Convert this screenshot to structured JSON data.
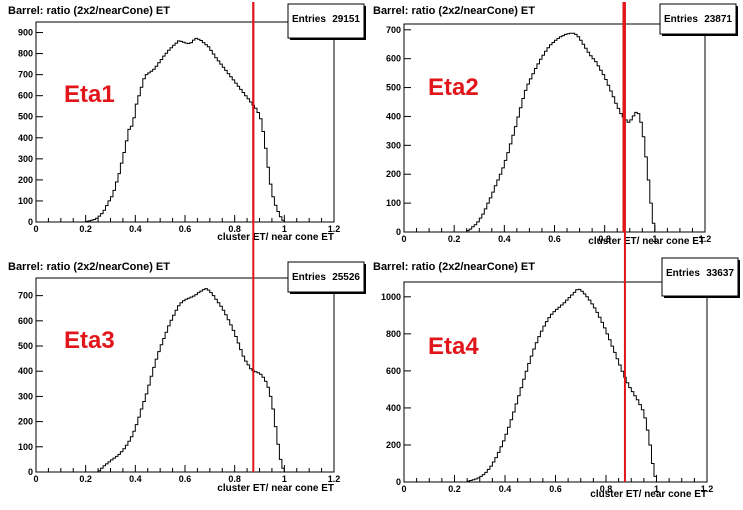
{
  "chart_data": [
    {
      "type": "bar",
      "title": "Barrel: ratio (2x2/nearCone) ET",
      "annotation": "Eta1",
      "xlabel": "cluster ET/ near cone ET",
      "ylabel": "",
      "stats": {
        "label": "Entries",
        "value": "29151"
      },
      "xlim": [
        0,
        1.2
      ],
      "ylim": [
        0,
        950
      ],
      "xticks": [
        "0",
        "0.2",
        "0.4",
        "0.6",
        "0.8",
        "1",
        "1.2"
      ],
      "yticks": [
        "0",
        "100",
        "200",
        "300",
        "400",
        "500",
        "600",
        "700",
        "800",
        "900"
      ],
      "cut_line": 0.875,
      "bin_width": 0.01,
      "x": [
        0.2,
        0.21,
        0.22,
        0.23,
        0.24,
        0.25,
        0.26,
        0.27,
        0.28,
        0.29,
        0.3,
        0.31,
        0.32,
        0.33,
        0.34,
        0.35,
        0.36,
        0.37,
        0.38,
        0.39,
        0.4,
        0.41,
        0.42,
        0.43,
        0.44,
        0.45,
        0.46,
        0.47,
        0.48,
        0.49,
        0.5,
        0.51,
        0.52,
        0.53,
        0.54,
        0.55,
        0.56,
        0.57,
        0.58,
        0.59,
        0.6,
        0.61,
        0.62,
        0.63,
        0.64,
        0.65,
        0.66,
        0.67,
        0.68,
        0.69,
        0.7,
        0.71,
        0.72,
        0.73,
        0.74,
        0.75,
        0.76,
        0.77,
        0.78,
        0.79,
        0.8,
        0.81,
        0.82,
        0.83,
        0.84,
        0.85,
        0.86,
        0.87,
        0.88,
        0.89,
        0.9,
        0.91,
        0.92,
        0.93,
        0.94,
        0.95,
        0.96,
        0.97,
        0.98,
        0.99
      ],
      "values": [
        3,
        5,
        8,
        12,
        18,
        28,
        40,
        56,
        78,
        100,
        120,
        150,
        190,
        230,
        280,
        330,
        385,
        440,
        455,
        495,
        560,
        600,
        640,
        680,
        700,
        708,
        716,
        726,
        740,
        756,
        772,
        788,
        802,
        816,
        828,
        840,
        850,
        860,
        858,
        854,
        850,
        848,
        852,
        864,
        872,
        868,
        862,
        852,
        842,
        832,
        815,
        798,
        780,
        765,
        750,
        735,
        720,
        705,
        690,
        675,
        660,
        645,
        630,
        615,
        600,
        585,
        570,
        555,
        540,
        520,
        490,
        430,
        350,
        260,
        180,
        120,
        80,
        50,
        25,
        8
      ]
    },
    {
      "type": "bar",
      "title": "Barrel: ratio (2x2/nearCone) ET",
      "annotation": "Eta2",
      "xlabel": "cluster ET/ near cone ET",
      "ylabel": "",
      "stats": {
        "label": "Entries",
        "value": "23871"
      },
      "xlim": [
        0,
        1.2
      ],
      "ylim": [
        0,
        720
      ],
      "xticks": [
        "0",
        "0.2",
        "0.4",
        "0.6",
        "0.8",
        "1",
        "1.2"
      ],
      "yticks": [
        "0",
        "100",
        "200",
        "300",
        "400",
        "500",
        "600",
        "700"
      ],
      "cut_line": 0.875,
      "bin_width": 0.01,
      "x": [
        0.25,
        0.26,
        0.27,
        0.28,
        0.29,
        0.3,
        0.31,
        0.32,
        0.33,
        0.34,
        0.35,
        0.36,
        0.37,
        0.38,
        0.39,
        0.4,
        0.41,
        0.42,
        0.43,
        0.44,
        0.45,
        0.46,
        0.47,
        0.48,
        0.49,
        0.5,
        0.51,
        0.52,
        0.53,
        0.54,
        0.55,
        0.56,
        0.57,
        0.58,
        0.59,
        0.6,
        0.61,
        0.62,
        0.63,
        0.64,
        0.65,
        0.66,
        0.67,
        0.68,
        0.69,
        0.7,
        0.71,
        0.72,
        0.73,
        0.74,
        0.75,
        0.76,
        0.77,
        0.78,
        0.79,
        0.8,
        0.81,
        0.82,
        0.83,
        0.84,
        0.85,
        0.86,
        0.87,
        0.88,
        0.89,
        0.9,
        0.91,
        0.92,
        0.93,
        0.94,
        0.95,
        0.96,
        0.97,
        0.98,
        0.99
      ],
      "values": [
        5,
        10,
        18,
        25,
        35,
        48,
        62,
        80,
        100,
        118,
        138,
        160,
        180,
        200,
        222,
        248,
        275,
        305,
        335,
        365,
        398,
        430,
        462,
        490,
        512,
        530,
        548,
        566,
        582,
        598,
        612,
        626,
        638,
        648,
        656,
        664,
        670,
        676,
        680,
        684,
        686,
        688,
        688,
        684,
        676,
        664,
        650,
        636,
        622,
        610,
        600,
        590,
        575,
        560,
        545,
        528,
        508,
        488,
        468,
        446,
        428,
        410,
        398,
        388,
        380,
        388,
        402,
        414,
        410,
        380,
        330,
        260,
        180,
        100,
        30
      ]
    },
    {
      "type": "bar",
      "title": "Barrel: ratio (2x2/nearCone) ET",
      "annotation": "Eta3",
      "xlabel": "cluster ET/ near cone ET",
      "ylabel": "",
      "stats": {
        "label": "Entries",
        "value": "25526"
      },
      "xlim": [
        0,
        1.2
      ],
      "ylim": [
        0,
        770
      ],
      "xticks": [
        "0",
        "0.2",
        "0.4",
        "0.6",
        "0.8",
        "1",
        "1.2"
      ],
      "yticks": [
        "0",
        "100",
        "200",
        "300",
        "400",
        "500",
        "600",
        "700"
      ],
      "cut_line": 0.875,
      "bin_width": 0.01,
      "x": [
        0.25,
        0.26,
        0.27,
        0.28,
        0.29,
        0.3,
        0.31,
        0.32,
        0.33,
        0.34,
        0.35,
        0.36,
        0.37,
        0.38,
        0.39,
        0.4,
        0.41,
        0.42,
        0.43,
        0.44,
        0.45,
        0.46,
        0.47,
        0.48,
        0.49,
        0.5,
        0.51,
        0.52,
        0.53,
        0.54,
        0.55,
        0.56,
        0.57,
        0.58,
        0.59,
        0.6,
        0.61,
        0.62,
        0.63,
        0.64,
        0.65,
        0.66,
        0.67,
        0.68,
        0.69,
        0.7,
        0.71,
        0.72,
        0.73,
        0.74,
        0.75,
        0.76,
        0.77,
        0.78,
        0.79,
        0.8,
        0.81,
        0.82,
        0.83,
        0.84,
        0.85,
        0.86,
        0.87,
        0.88,
        0.89,
        0.9,
        0.91,
        0.92,
        0.93,
        0.94,
        0.95,
        0.96,
        0.97,
        0.98,
        0.99
      ],
      "values": [
        5,
        15,
        25,
        32,
        40,
        48,
        55,
        62,
        70,
        80,
        92,
        106,
        122,
        140,
        162,
        188,
        218,
        250,
        280,
        310,
        345,
        380,
        415,
        448,
        478,
        505,
        530,
        555,
        580,
        602,
        622,
        642,
        660,
        672,
        680,
        686,
        690,
        694,
        698,
        704,
        712,
        718,
        724,
        728,
        722,
        712,
        700,
        686,
        672,
        658,
        642,
        624,
        604,
        584,
        562,
        538,
        512,
        486,
        460,
        440,
        425,
        410,
        402,
        398,
        394,
        388,
        376,
        360,
        336,
        300,
        250,
        180,
        110,
        50,
        15
      ]
    },
    {
      "type": "bar",
      "title": "Barrel: ratio (2x2/nearCone) ET",
      "annotation": "Eta4",
      "xlabel": "cluster ET/ near cone ET",
      "ylabel": "",
      "stats": {
        "label": "Entries",
        "value": "33637"
      },
      "xlim": [
        0,
        1.2
      ],
      "ylim": [
        0,
        1080
      ],
      "xticks": [
        "0",
        "0.2",
        "0.4",
        "0.6",
        "0.8",
        "1",
        "1.2"
      ],
      "yticks": [
        "0",
        "200",
        "400",
        "600",
        "800",
        "1000"
      ],
      "cut_line": 0.875,
      "bin_width": 0.01,
      "x": [
        0.25,
        0.26,
        0.27,
        0.28,
        0.29,
        0.3,
        0.31,
        0.32,
        0.33,
        0.34,
        0.35,
        0.36,
        0.37,
        0.38,
        0.39,
        0.4,
        0.41,
        0.42,
        0.43,
        0.44,
        0.45,
        0.46,
        0.47,
        0.48,
        0.49,
        0.5,
        0.51,
        0.52,
        0.53,
        0.54,
        0.55,
        0.56,
        0.57,
        0.58,
        0.59,
        0.6,
        0.61,
        0.62,
        0.63,
        0.64,
        0.65,
        0.66,
        0.67,
        0.68,
        0.69,
        0.7,
        0.71,
        0.72,
        0.73,
        0.74,
        0.75,
        0.76,
        0.77,
        0.78,
        0.79,
        0.8,
        0.81,
        0.82,
        0.83,
        0.84,
        0.85,
        0.86,
        0.87,
        0.88,
        0.89,
        0.9,
        0.91,
        0.92,
        0.93,
        0.94,
        0.95,
        0.96,
        0.97,
        0.98,
        0.99
      ],
      "values": [
        5,
        8,
        12,
        16,
        22,
        30,
        40,
        52,
        68,
        86,
        108,
        132,
        160,
        190,
        222,
        258,
        296,
        336,
        378,
        422,
        466,
        510,
        555,
        598,
        640,
        680,
        718,
        752,
        785,
        815,
        842,
        866,
        888,
        906,
        920,
        932,
        944,
        956,
        968,
        982,
        996,
        1010,
        1024,
        1038,
        1040,
        1030,
        1016,
        1000,
        982,
        962,
        940,
        916,
        890,
        862,
        832,
        800,
        768,
        734,
        700,
        666,
        632,
        598,
        566,
        536,
        510,
        488,
        466,
        444,
        418,
        390,
        346,
        280,
        200,
        100,
        30
      ]
    }
  ]
}
